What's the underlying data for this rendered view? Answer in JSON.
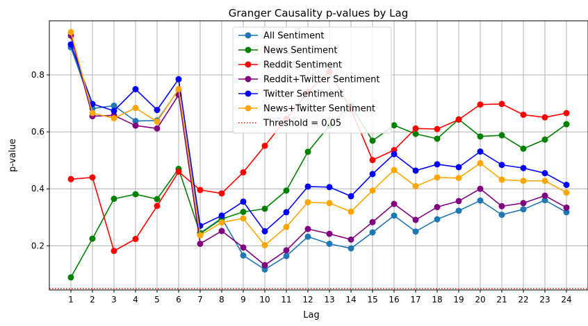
{
  "chart_data": {
    "type": "line",
    "title": "Granger Causality p-values by Lag",
    "xlabel": "Lag",
    "ylabel": "p-value",
    "x": [
      1,
      2,
      3,
      4,
      5,
      6,
      7,
      8,
      9,
      10,
      11,
      12,
      13,
      14,
      15,
      16,
      17,
      18,
      19,
      20,
      21,
      22,
      23,
      24
    ],
    "xlim": [
      0,
      25
    ],
    "ylim": [
      0.045,
      0.99
    ],
    "yticks": [
      0.2,
      0.4,
      0.6,
      0.8
    ],
    "ytick_labels": [
      "0.2",
      "0.4",
      "0.6",
      "0.8"
    ],
    "grid": true,
    "legend_position": "top-center",
    "series": [
      {
        "name": "All Sentiment",
        "color": "#1f77b4",
        "values": [
          0.897,
          0.682,
          0.692,
          0.638,
          0.64,
          0.748,
          0.245,
          0.297,
          0.166,
          0.117,
          0.164,
          0.232,
          0.207,
          0.191,
          0.247,
          0.306,
          0.25,
          0.293,
          0.323,
          0.359,
          0.309,
          0.328,
          0.36,
          0.318
        ]
      },
      {
        "name": "News Sentiment",
        "color": "#008000",
        "values": [
          0.089,
          0.225,
          0.365,
          0.381,
          0.364,
          0.47,
          0.243,
          0.294,
          0.319,
          0.33,
          0.394,
          0.53,
          0.622,
          0.692,
          0.569,
          0.623,
          0.593,
          0.576,
          0.644,
          0.584,
          0.588,
          0.541,
          0.573,
          0.627
        ]
      },
      {
        "name": "Reddit Sentiment",
        "color": "#ff0000",
        "values": [
          0.434,
          0.44,
          0.182,
          0.224,
          0.34,
          0.46,
          0.396,
          0.384,
          0.458,
          0.551,
          0.646,
          0.74,
          0.812,
          0.68,
          0.501,
          0.536,
          0.612,
          0.61,
          0.643,
          0.696,
          0.698,
          0.66,
          0.651,
          0.666
        ]
      },
      {
        "name": "Reddit+Twitter Sentiment",
        "color": "#800080",
        "values": [
          0.938,
          0.655,
          0.658,
          0.622,
          0.612,
          0.73,
          0.207,
          0.252,
          0.194,
          0.132,
          0.184,
          0.259,
          0.242,
          0.222,
          0.283,
          0.347,
          0.291,
          0.336,
          0.357,
          0.4,
          0.339,
          0.35,
          0.376,
          0.334
        ]
      },
      {
        "name": "Twitter Sentiment",
        "color": "#0000ff",
        "values": [
          0.907,
          0.698,
          0.674,
          0.75,
          0.677,
          0.785,
          0.27,
          0.306,
          0.355,
          0.251,
          0.318,
          0.408,
          0.406,
          0.374,
          0.452,
          0.522,
          0.464,
          0.486,
          0.476,
          0.531,
          0.484,
          0.473,
          0.455,
          0.414
        ]
      },
      {
        "name": "News+Twitter Sentiment",
        "color": "#ffa500",
        "values": [
          0.95,
          0.666,
          0.648,
          0.684,
          0.636,
          0.75,
          0.237,
          0.282,
          0.296,
          0.202,
          0.266,
          0.353,
          0.35,
          0.32,
          0.394,
          0.466,
          0.409,
          0.44,
          0.438,
          0.49,
          0.432,
          0.428,
          0.428,
          0.387
        ]
      }
    ],
    "threshold": {
      "name": "Threshold = 0.05",
      "value": 0.05,
      "color": "#ff0000"
    }
  }
}
